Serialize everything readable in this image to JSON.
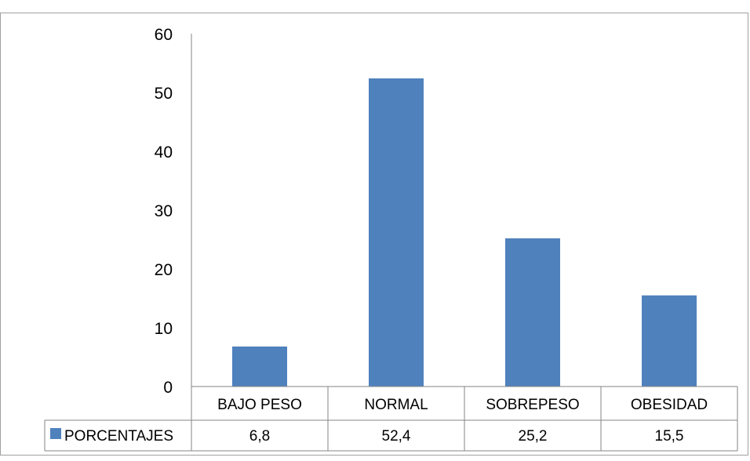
{
  "chart_data": {
    "type": "bar",
    "categories": [
      "BAJO PESO",
      "NORMAL",
      "SOBREPESO",
      "OBESIDAD"
    ],
    "series": [
      {
        "name": "PORCENTAJES",
        "values": [
          6.8,
          52.4,
          25.2,
          15.5
        ],
        "labels": [
          "6,8",
          "52,4",
          "25,2",
          "15,5"
        ],
        "color": "#4f81bd"
      }
    ],
    "ylim": [
      0,
      60
    ],
    "yticks": [
      0,
      10,
      20,
      30,
      40,
      50,
      60
    ],
    "grid": false,
    "data_table": true,
    "legend": "data-table-left"
  }
}
